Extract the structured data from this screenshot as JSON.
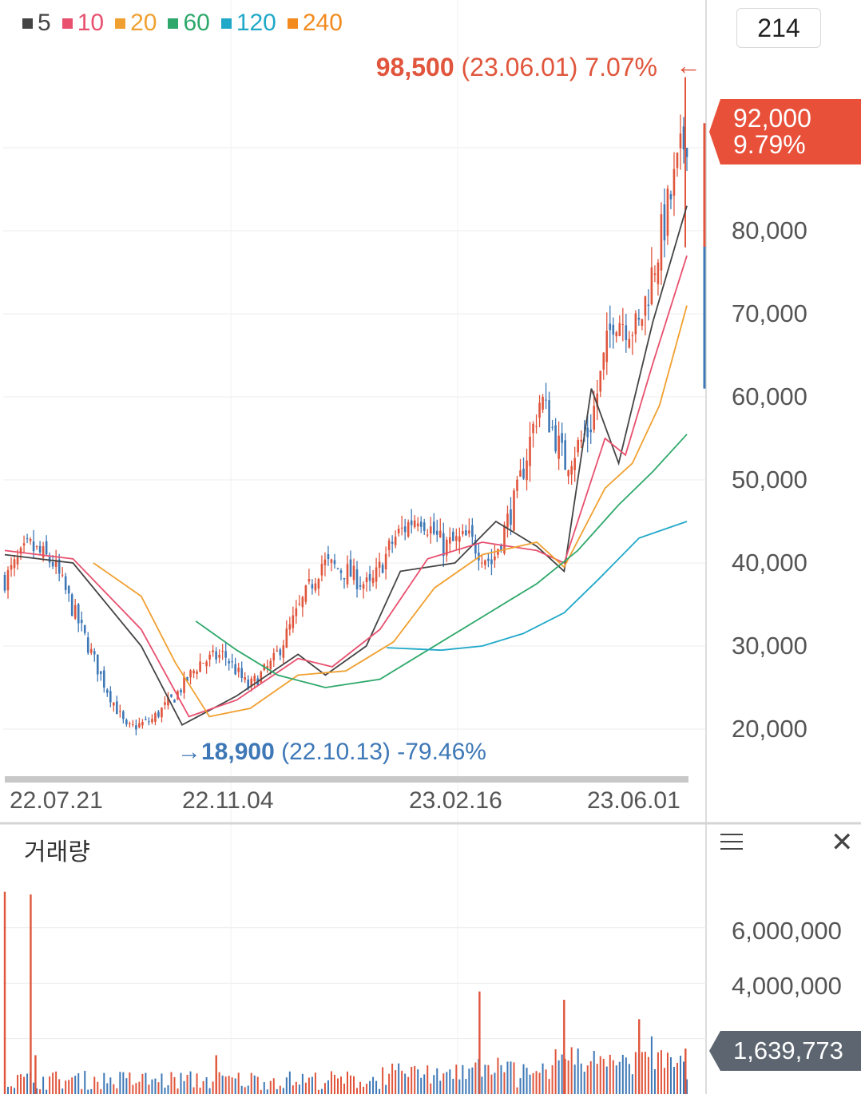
{
  "legend": [
    {
      "label": "5",
      "color": "#444444"
    },
    {
      "label": "10",
      "color": "#e8506e"
    },
    {
      "label": "20",
      "color": "#f0a030"
    },
    {
      "label": "60",
      "color": "#2ea86a"
    },
    {
      "label": "120",
      "color": "#1fa8c8"
    },
    {
      "label": "240",
      "color": "#f28a1e"
    }
  ],
  "candle_count": "214",
  "high_marker": {
    "price": "98,500",
    "date": "(23.06.01)",
    "pct": "7.07%",
    "arrow": "←"
  },
  "low_marker": {
    "arrow": "→",
    "price": "18,900",
    "date": "(22.10.13)",
    "pct": "-79.46%"
  },
  "current_price": {
    "price": "92,000",
    "pct": "9.79%"
  },
  "volume_panel": {
    "title": "거래량",
    "current_volume": "1,639,773",
    "menu_icon": "hamburger-menu-icon",
    "close_icon": "close-icon"
  },
  "colors": {
    "up": "#e0553c",
    "down": "#3e78b6",
    "grid": "#ececec"
  },
  "chart_data": [
    {
      "type": "candlestick",
      "title": "",
      "x_ticks": [
        "22.07.21",
        "22.11.04",
        "23.02.16",
        "23.06.01"
      ],
      "y_ticks": [
        "20,000",
        "30,000",
        "40,000",
        "50,000",
        "60,000",
        "70,000",
        "80,000"
      ],
      "ylim": [
        14000,
        98500
      ],
      "grid": true,
      "period_high": 98500,
      "period_low": 18900,
      "last_close": 92000,
      "close_path": [
        {
          "date": "22.07.21",
          "close": 38000
        },
        {
          "date": "22.08.01",
          "close": 42000
        },
        {
          "date": "22.08.20",
          "close": 40000
        },
        {
          "date": "22.09.10",
          "close": 33000
        },
        {
          "date": "22.09.30",
          "close": 26000
        },
        {
          "date": "22.10.13",
          "close": 20000
        },
        {
          "date": "22.11.04",
          "close": 21000
        },
        {
          "date": "22.11.25",
          "close": 24000
        },
        {
          "date": "22.12.10",
          "close": 28000
        },
        {
          "date": "22.12.25",
          "close": 29000
        },
        {
          "date": "23.01.10",
          "close": 25000
        },
        {
          "date": "23.01.20",
          "close": 28000
        },
        {
          "date": "23.02.01",
          "close": 34000
        },
        {
          "date": "23.02.10",
          "close": 40000
        },
        {
          "date": "23.02.16",
          "close": 39000
        },
        {
          "date": "23.03.01",
          "close": 37000
        },
        {
          "date": "23.03.10",
          "close": 43000
        },
        {
          "date": "23.03.20",
          "close": 46000
        },
        {
          "date": "23.04.01",
          "close": 42000
        },
        {
          "date": "23.04.10",
          "close": 43000
        },
        {
          "date": "23.04.20",
          "close": 40000
        },
        {
          "date": "23.05.01",
          "close": 48000
        },
        {
          "date": "23.05.10",
          "close": 60000
        },
        {
          "date": "23.05.20",
          "close": 52000
        },
        {
          "date": "23.05.25",
          "close": 56000
        },
        {
          "date": "23.06.01",
          "close": 70000
        },
        {
          "date": "23.06.05",
          "close": 68000
        },
        {
          "date": "23.06.10",
          "close": 80000
        },
        {
          "date": "23.06.15",
          "close": 92000
        }
      ],
      "moving_averages": [
        {
          "name": "5",
          "color": "#444444",
          "points": [
            [
              0,
              41000
            ],
            [
              0.1,
              40000
            ],
            [
              0.2,
              30000
            ],
            [
              0.26,
              20500
            ],
            [
              0.34,
              24000
            ],
            [
              0.43,
              29000
            ],
            [
              0.47,
              26500
            ],
            [
              0.53,
              30000
            ],
            [
              0.58,
              39000
            ],
            [
              0.66,
              40000
            ],
            [
              0.72,
              45000
            ],
            [
              0.78,
              42000
            ],
            [
              0.82,
              39000
            ],
            [
              0.86,
              61000
            ],
            [
              0.9,
              52000
            ],
            [
              0.95,
              69000
            ],
            [
              1.0,
              83000
            ]
          ]
        },
        {
          "name": "10",
          "color": "#e8506e",
          "points": [
            [
              0,
              41500
            ],
            [
              0.1,
              40500
            ],
            [
              0.2,
              32000
            ],
            [
              0.27,
              21500
            ],
            [
              0.34,
              23500
            ],
            [
              0.43,
              28500
            ],
            [
              0.48,
              27500
            ],
            [
              0.55,
              32000
            ],
            [
              0.62,
              40500
            ],
            [
              0.7,
              42500
            ],
            [
              0.78,
              41500
            ],
            [
              0.82,
              40000
            ],
            [
              0.88,
              55000
            ],
            [
              0.91,
              53000
            ],
            [
              0.95,
              64000
            ],
            [
              1.0,
              77000
            ]
          ]
        },
        {
          "name": "20",
          "color": "#f0a030",
          "points": [
            [
              0.13,
              40000
            ],
            [
              0.2,
              36000
            ],
            [
              0.25,
              28000
            ],
            [
              0.3,
              21500
            ],
            [
              0.36,
              22500
            ],
            [
              0.43,
              26500
            ],
            [
              0.5,
              27000
            ],
            [
              0.57,
              30500
            ],
            [
              0.63,
              37000
            ],
            [
              0.7,
              41000
            ],
            [
              0.78,
              42500
            ],
            [
              0.82,
              39500
            ],
            [
              0.88,
              49000
            ],
            [
              0.92,
              52000
            ],
            [
              0.96,
              59000
            ],
            [
              1.0,
              71000
            ]
          ]
        },
        {
          "name": "60",
          "color": "#2ea86a",
          "points": [
            [
              0.28,
              33000
            ],
            [
              0.34,
              29500
            ],
            [
              0.4,
              26500
            ],
            [
              0.47,
              25000
            ],
            [
              0.55,
              26000
            ],
            [
              0.62,
              29500
            ],
            [
              0.7,
              33500
            ],
            [
              0.78,
              37500
            ],
            [
              0.84,
              41500
            ],
            [
              0.9,
              47000
            ],
            [
              0.95,
              51000
            ],
            [
              1.0,
              55500
            ]
          ]
        },
        {
          "name": "120",
          "color": "#1fa8c8",
          "points": [
            [
              0.56,
              29800
            ],
            [
              0.64,
              29500
            ],
            [
              0.7,
              30000
            ],
            [
              0.76,
              31500
            ],
            [
              0.82,
              34000
            ],
            [
              0.87,
              38000
            ],
            [
              0.93,
              43000
            ],
            [
              1.0,
              45000
            ]
          ]
        }
      ]
    },
    {
      "type": "bar",
      "title": "거래량",
      "y_ticks": [
        "6,000,000",
        "4,000,000"
      ],
      "ylim": [
        0,
        8000000
      ],
      "grid": true,
      "last_value": 1639773,
      "spikes": [
        {
          "date": "22.07.21",
          "value": 7300000
        },
        {
          "date": "22.07.25",
          "value": 7200000
        },
        {
          "date": "22.08.01",
          "value": 1400000
        },
        {
          "date": "22.12.01",
          "value": 1400000
        },
        {
          "date": "23.03.10",
          "value": 3700000
        },
        {
          "date": "23.05.10",
          "value": 3400000
        },
        {
          "date": "23.06.05",
          "value": 2700000
        },
        {
          "date": "23.06.15",
          "value": 1639773
        }
      ]
    }
  ]
}
